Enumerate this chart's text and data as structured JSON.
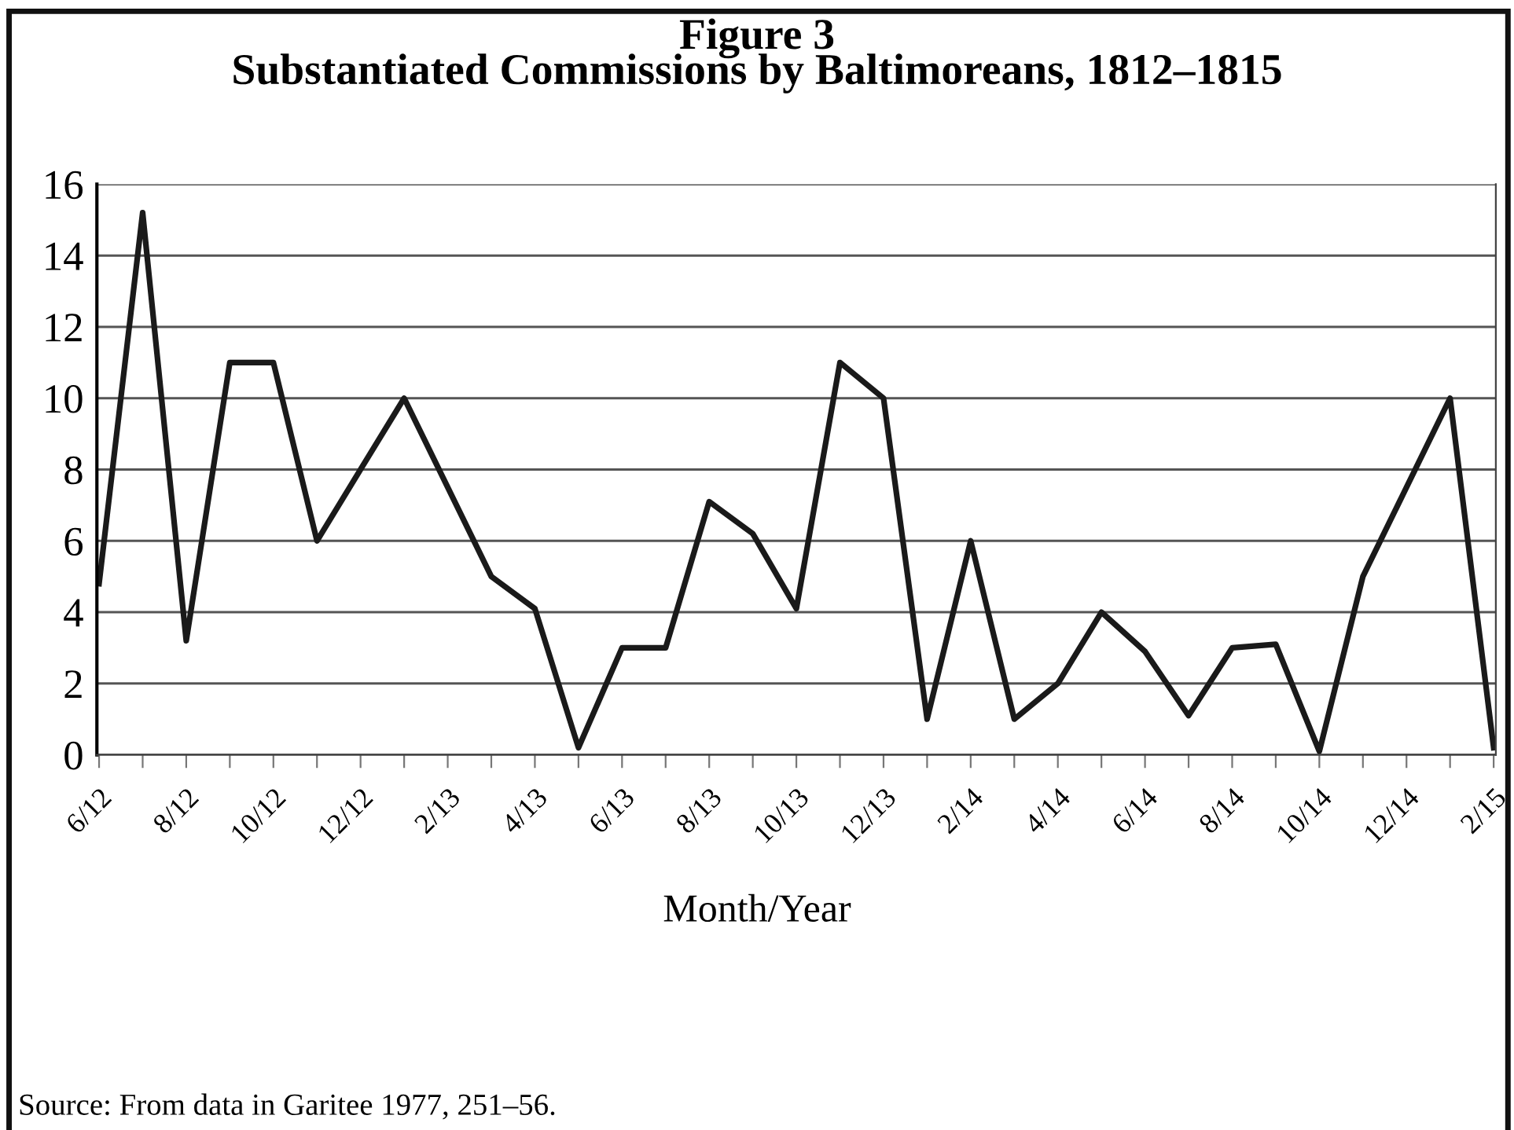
{
  "chart_data": {
    "type": "line",
    "title": "Figure 3",
    "subtitle": "Substantiated Commissions by Baltimoreans, 1812–1815",
    "xlabel": "Month/Year",
    "categories": [
      "6/12",
      null,
      "8/12",
      null,
      "10/12",
      null,
      "12/12",
      null,
      "2/13",
      null,
      "4/13",
      null,
      "6/13",
      null,
      "8/13",
      null,
      "10/13",
      null,
      "12/13",
      null,
      "2/14",
      null,
      "4/14",
      null,
      "6/14",
      null,
      "8/14",
      null,
      "10/14",
      null,
      "12/14",
      null,
      "2/15"
    ],
    "series": [
      {
        "color": "#1a1a1a",
        "values": [
          4.8,
          15.2,
          3.2,
          11,
          11,
          6,
          8,
          10,
          7.5,
          5,
          4.1,
          0.2,
          3,
          3,
          7.1,
          6.2,
          4.1,
          11,
          10,
          1,
          6,
          1,
          2,
          4,
          2.9,
          1.1,
          3,
          3.1,
          0.1,
          5,
          7.5,
          10,
          0.2
        ]
      }
    ],
    "ylim": [
      0,
      16
    ],
    "yticks": [
      0,
      2,
      4,
      6,
      8,
      10,
      12,
      14,
      16
    ],
    "grid": "y",
    "marker": "none",
    "line_style": "solid",
    "annotations": [
      "Source: From data in Garitee 1977, 251–56."
    ]
  }
}
